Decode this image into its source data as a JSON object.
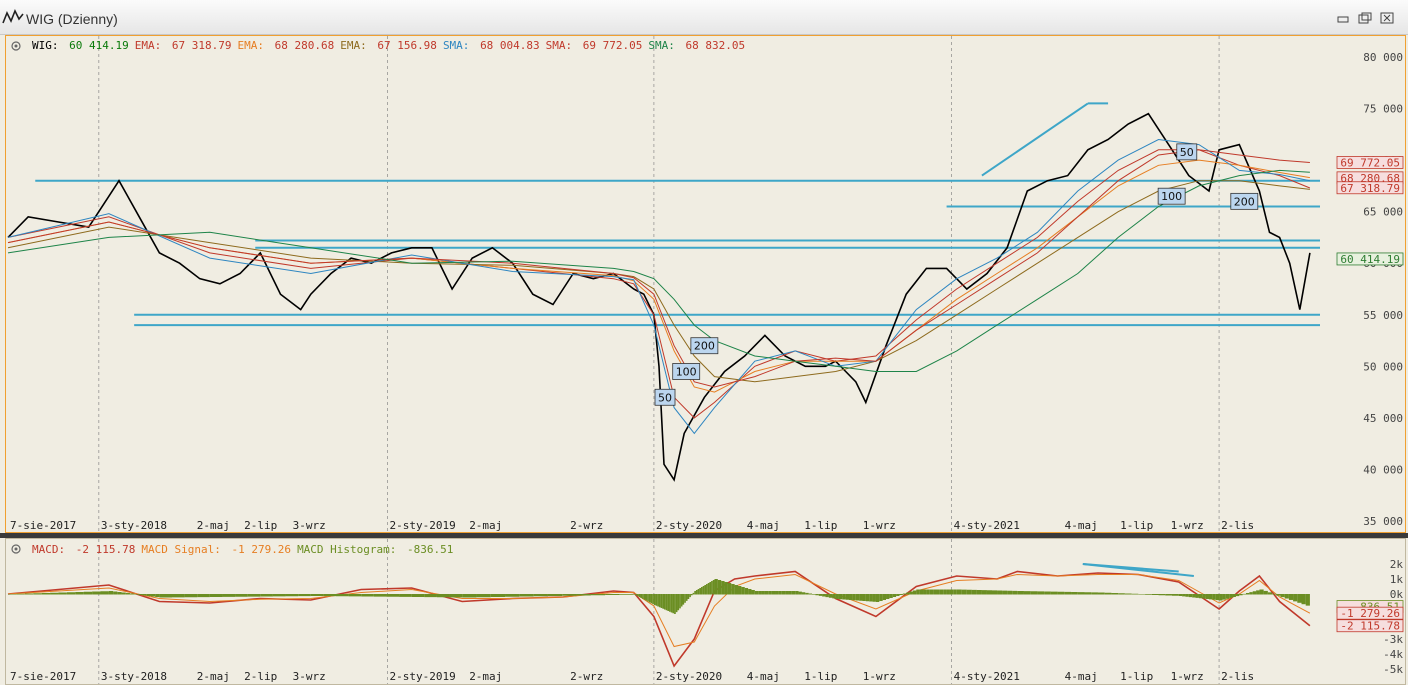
{
  "window": {
    "title": "WIG (Dzienny)",
    "controls": [
      "minimize",
      "restore",
      "close"
    ]
  },
  "main_legend": [
    {
      "label": "WIG:",
      "value": "60 414.19",
      "color": "#000000",
      "valcolor": "#0a7a0a"
    },
    {
      "label": "EMA:",
      "value": "67 318.79",
      "color": "#c0392b",
      "valcolor": "#c0392b"
    },
    {
      "label": "EMA:",
      "value": "68 280.68",
      "color": "#e67e22",
      "valcolor": "#c0392b"
    },
    {
      "label": "EMA:",
      "value": "67 156.98",
      "color": "#8e6b1e",
      "valcolor": "#c0392b"
    },
    {
      "label": "SMA:",
      "value": "68 004.83",
      "color": "#2e86c1",
      "valcolor": "#c0392b"
    },
    {
      "label": "SMA:",
      "value": "69 772.05",
      "color": "#c0392b",
      "valcolor": "#c0392b"
    },
    {
      "label": "SMA:",
      "value": "68 832.05",
      "color": "#1e8449",
      "valcolor": "#c0392b"
    }
  ],
  "sub_legend": [
    {
      "label": "MACD:",
      "value": "-2 115.78",
      "color": "#c0392b"
    },
    {
      "label": "MACD Signal:",
      "value": "-1 279.26",
      "color": "#e67e22"
    },
    {
      "label": "MACD Histogram:",
      "value": "-836.51",
      "color": "#6b8e23"
    }
  ],
  "price_badges": [
    {
      "text": "69 772.05",
      "color": "#c0392b",
      "level": 69772
    },
    {
      "text": "68 280.68",
      "color": "#c0392b",
      "level": 68280
    },
    {
      "text": "67 318.79",
      "color": "#c0392b",
      "level": 67318
    },
    {
      "text": "60 414.19",
      "color": "#2e7d32",
      "level": 60414
    }
  ],
  "macd_badges": [
    {
      "text": "-836.51",
      "color": "#6b8e23",
      "level": -836
    },
    {
      "text": "-1 279.26",
      "color": "#c0392b",
      "level": -1279
    },
    {
      "text": "-2 115.78",
      "color": "#c0392b",
      "level": -2116
    }
  ],
  "chart_data": [
    {
      "type": "line",
      "title": "WIG (Dzienny)",
      "ylim": [
        35000,
        80000
      ],
      "y_ticks": [
        "80 000",
        "75 000",
        "70 000",
        "65 000",
        "60 000",
        "55 000",
        "50 000",
        "45 000",
        "40 000",
        "35 000"
      ],
      "y_tick_values": [
        80000,
        75000,
        70000,
        65000,
        60000,
        55000,
        50000,
        45000,
        40000,
        35000
      ],
      "x_ticks": [
        "7-sie-2017",
        "3-sty-2018",
        "2-maj",
        "2-lip",
        "3-wrz",
        "2-sty-2019",
        "2-maj",
        "2-wrz",
        "2-sty-2020",
        "4-maj",
        "1-lip",
        "1-wrz",
        "4-sty-2021",
        "4-maj",
        "1-lip",
        "1-wrz",
        "2-lis"
      ],
      "x_tick_index": [
        0,
        0.09,
        0.185,
        0.232,
        0.28,
        0.376,
        0.455,
        0.555,
        0.64,
        0.73,
        0.787,
        0.845,
        0.935,
        1.045,
        1.1,
        1.15,
        1.2
      ],
      "series": [
        {
          "name": "WIG",
          "color": "#000000",
          "x": [
            0,
            0.02,
            0.05,
            0.08,
            0.1,
            0.11,
            0.13,
            0.15,
            0.17,
            0.19,
            0.21,
            0.23,
            0.25,
            0.27,
            0.29,
            0.3,
            0.32,
            0.34,
            0.36,
            0.38,
            0.4,
            0.42,
            0.44,
            0.46,
            0.48,
            0.5,
            0.52,
            0.54,
            0.56,
            0.58,
            0.6,
            0.62,
            0.63,
            0.64,
            0.645,
            0.65,
            0.66,
            0.67,
            0.69,
            0.71,
            0.73,
            0.75,
            0.77,
            0.79,
            0.81,
            0.82,
            0.83,
            0.84,
            0.85,
            0.87,
            0.89,
            0.91,
            0.93,
            0.95,
            0.97,
            0.99,
            1.01,
            1.03,
            1.05,
            1.07,
            1.09,
            1.11,
            1.13,
            1.15,
            1.17,
            1.19,
            1.2,
            1.22,
            1.24,
            1.25,
            1.26,
            1.27,
            1.28,
            1.29
          ],
          "values": [
            62500,
            64500,
            64000,
            63500,
            66500,
            68000,
            64500,
            61000,
            60000,
            58500,
            58000,
            59000,
            61000,
            57000,
            55500,
            57000,
            59000,
            60500,
            60000,
            61000,
            61500,
            61500,
            57500,
            60500,
            61500,
            60000,
            57000,
            56000,
            59000,
            58500,
            59000,
            57500,
            57000,
            55000,
            50000,
            40500,
            39000,
            43500,
            47000,
            49500,
            51000,
            53000,
            51000,
            50000,
            50000,
            50500,
            49500,
            48500,
            46500,
            52000,
            57000,
            59500,
            59500,
            57500,
            59000,
            61500,
            67000,
            68000,
            68500,
            71000,
            72000,
            73500,
            74500,
            71500,
            68500,
            67000,
            71000,
            71500,
            67000,
            63000,
            62500,
            60000,
            55500,
            61000
          ]
        },
        {
          "name": "EMA 67 318.79",
          "color": "#c0392b",
          "x": [
            0,
            0.1,
            0.2,
            0.3,
            0.4,
            0.5,
            0.6,
            0.62,
            0.64,
            0.66,
            0.68,
            0.7,
            0.74,
            0.78,
            0.82,
            0.86,
            0.9,
            0.94,
            0.98,
            1.02,
            1.06,
            1.1,
            1.14,
            1.18,
            1.22,
            1.26,
            1.29
          ],
          "values": [
            62500,
            64500,
            61000,
            59500,
            60500,
            59500,
            58500,
            58000,
            55000,
            47000,
            45000,
            46500,
            50000,
            51500,
            50500,
            51000,
            54500,
            57500,
            60000,
            62500,
            66000,
            69000,
            71000,
            71000,
            69500,
            68500,
            67300
          ]
        },
        {
          "name": "EMA 68 280.68",
          "color": "#e67e22",
          "x": [
            0,
            0.1,
            0.2,
            0.3,
            0.4,
            0.5,
            0.6,
            0.62,
            0.64,
            0.66,
            0.68,
            0.7,
            0.74,
            0.78,
            0.82,
            0.86,
            0.9,
            0.94,
            0.98,
            1.02,
            1.06,
            1.1,
            1.14,
            1.18,
            1.22,
            1.26,
            1.29
          ],
          "values": [
            62000,
            64000,
            61500,
            60000,
            60500,
            59500,
            58800,
            58300,
            56500,
            51500,
            48000,
            47500,
            49500,
            50500,
            50500,
            50500,
            53500,
            56500,
            59000,
            61500,
            64500,
            67500,
            69500,
            70000,
            69500,
            68800,
            68300
          ]
        },
        {
          "name": "EMA 67 156.98",
          "color": "#8e6b1e",
          "x": [
            0,
            0.1,
            0.2,
            0.3,
            0.4,
            0.5,
            0.6,
            0.62,
            0.64,
            0.66,
            0.68,
            0.7,
            0.74,
            0.78,
            0.82,
            0.86,
            0.9,
            0.94,
            0.98,
            1.02,
            1.06,
            1.1,
            1.14,
            1.18,
            1.22,
            1.26,
            1.29
          ],
          "values": [
            61500,
            63500,
            62000,
            60500,
            60000,
            59800,
            59000,
            58700,
            57500,
            54000,
            51000,
            49000,
            48500,
            49000,
            49500,
            50500,
            52500,
            55000,
            57500,
            60000,
            62500,
            65000,
            67000,
            68000,
            68000,
            67500,
            67160
          ]
        },
        {
          "name": "SMA 68 004.83",
          "color": "#2e86c1",
          "x": [
            0,
            0.1,
            0.2,
            0.3,
            0.4,
            0.5,
            0.6,
            0.62,
            0.64,
            0.66,
            0.68,
            0.7,
            0.74,
            0.78,
            0.82,
            0.86,
            0.9,
            0.94,
            0.98,
            1.02,
            1.06,
            1.1,
            1.14,
            1.18,
            1.22,
            1.26,
            1.29
          ],
          "values": [
            62500,
            64800,
            60500,
            59000,
            60800,
            59200,
            58700,
            58400,
            54000,
            46000,
            43500,
            46000,
            50500,
            51500,
            50000,
            50500,
            55500,
            58500,
            60500,
            63000,
            67000,
            70000,
            72000,
            71500,
            69000,
            68600,
            68000
          ]
        },
        {
          "name": "SMA 69 772.05",
          "color": "#c0392b",
          "x": [
            0,
            0.1,
            0.2,
            0.3,
            0.4,
            0.5,
            0.6,
            0.62,
            0.64,
            0.66,
            0.68,
            0.7,
            0.74,
            0.78,
            0.82,
            0.86,
            0.9,
            0.94,
            0.98,
            1.02,
            1.06,
            1.1,
            1.14,
            1.18,
            1.22,
            1.26,
            1.29
          ],
          "values": [
            62000,
            64000,
            61500,
            60000,
            60500,
            60000,
            59000,
            58600,
            57000,
            52000,
            48500,
            48000,
            49000,
            50500,
            50800,
            50500,
            53500,
            56000,
            58500,
            61000,
            64500,
            68000,
            70500,
            71000,
            70500,
            70000,
            69770
          ]
        },
        {
          "name": "SMA 68 832.05",
          "color": "#1e8449",
          "x": [
            0,
            0.1,
            0.2,
            0.3,
            0.4,
            0.5,
            0.6,
            0.62,
            0.64,
            0.66,
            0.68,
            0.7,
            0.74,
            0.78,
            0.82,
            0.86,
            0.9,
            0.94,
            0.98,
            1.02,
            1.06,
            1.1,
            1.14,
            1.18,
            1.22,
            1.26,
            1.29
          ],
          "values": [
            61000,
            62500,
            63000,
            61500,
            60000,
            60200,
            59500,
            59200,
            58500,
            56500,
            54000,
            52500,
            51000,
            50500,
            50000,
            49500,
            49500,
            51500,
            54000,
            56500,
            59000,
            62500,
            65500,
            67500,
            68500,
            69000,
            68830
          ]
        }
      ],
      "annotations": [
        {
          "text": "50",
          "x": 0.651,
          "y": 47000
        },
        {
          "text": "100",
          "x": 0.672,
          "y": 49500
        },
        {
          "text": "200",
          "x": 0.69,
          "y": 52000
        },
        {
          "text": "50",
          "x": 1.168,
          "y": 70800
        },
        {
          "text": "100",
          "x": 1.153,
          "y": 66500
        },
        {
          "text": "200",
          "x": 1.225,
          "y": 66000
        }
      ],
      "h_lines": [
        {
          "y": 68000,
          "x0": 0.027,
          "x1": 1.3
        },
        {
          "y": 65500,
          "x0": 0.93,
          "x1": 1.3
        },
        {
          "y": 62200,
          "x0": 0.245,
          "x1": 1.3
        },
        {
          "y": 61500,
          "x0": 0.245,
          "x1": 1.3
        },
        {
          "y": 55000,
          "x0": 0.125,
          "x1": 1.3
        },
        {
          "y": 54000,
          "x0": 0.125,
          "x1": 1.3
        }
      ],
      "trend_lines": [
        {
          "x0": 0.965,
          "y0": 68500,
          "x1": 1.07,
          "y1": 75500
        },
        {
          "x0": 1.07,
          "y0": 75500,
          "x1": 1.09,
          "y1": 75500
        }
      ]
    },
    {
      "type": "line",
      "title": "MACD",
      "ylim": [
        -5000,
        3000
      ],
      "y_ticks": [
        "2k",
        "1k",
        "0k",
        "-1k",
        "-2k",
        "-3k",
        "-4k",
        "-5k"
      ],
      "y_tick_values": [
        2000,
        1000,
        0,
        -1000,
        -2000,
        -3000,
        -4000,
        -5000
      ],
      "series": [
        {
          "name": "MACD",
          "color": "#c0392b",
          "x": [
            0,
            0.05,
            0.1,
            0.15,
            0.2,
            0.25,
            0.3,
            0.35,
            0.4,
            0.45,
            0.5,
            0.55,
            0.6,
            0.62,
            0.64,
            0.66,
            0.68,
            0.7,
            0.72,
            0.74,
            0.78,
            0.82,
            0.86,
            0.9,
            0.94,
            0.98,
            1.0,
            1.04,
            1.08,
            1.12,
            1.16,
            1.2,
            1.22,
            1.24,
            1.26,
            1.29
          ],
          "values": [
            0,
            300,
            600,
            -500,
            -600,
            -300,
            -400,
            300,
            400,
            -500,
            -300,
            -200,
            200,
            100,
            -1500,
            -4800,
            -3000,
            200,
            1000,
            1200,
            1500,
            -300,
            -1500,
            500,
            1200,
            1000,
            1500,
            1200,
            1400,
            1300,
            800,
            -1000,
            200,
            1200,
            -500,
            -2116
          ]
        },
        {
          "name": "MACD Signal",
          "color": "#e67e22",
          "x": [
            0,
            0.05,
            0.1,
            0.15,
            0.2,
            0.25,
            0.3,
            0.35,
            0.4,
            0.45,
            0.5,
            0.55,
            0.6,
            0.62,
            0.64,
            0.66,
            0.68,
            0.7,
            0.72,
            0.74,
            0.78,
            0.82,
            0.86,
            0.9,
            0.94,
            0.98,
            1.0,
            1.04,
            1.08,
            1.12,
            1.16,
            1.2,
            1.22,
            1.24,
            1.26,
            1.29
          ],
          "values": [
            0,
            200,
            400,
            -300,
            -500,
            -350,
            -300,
            100,
            300,
            -300,
            -300,
            -200,
            100,
            100,
            -800,
            -3500,
            -3200,
            -800,
            500,
            1000,
            1300,
            0,
            -1000,
            200,
            900,
            1000,
            1300,
            1200,
            1300,
            1300,
            900,
            -600,
            0,
            900,
            -200,
            -1279
          ]
        },
        {
          "name": "MACD Histogram",
          "color": "#6b8e23",
          "x": [
            0,
            0.1,
            0.15,
            0.3,
            0.45,
            0.62,
            0.64,
            0.66,
            0.68,
            0.7,
            0.74,
            0.78,
            0.82,
            0.86,
            0.9,
            0.94,
            1.0,
            1.08,
            1.16,
            1.2,
            1.24,
            1.29
          ],
          "values": [
            0,
            200,
            -200,
            -100,
            -200,
            0,
            -700,
            -1300,
            200,
            1000,
            200,
            200,
            -300,
            -500,
            300,
            300,
            200,
            100,
            -100,
            -400,
            300,
            -837
          ]
        }
      ],
      "trend_lines": [
        {
          "x0": 1.065,
          "y0": 2000,
          "x1": 1.16,
          "y1": 1500
        },
        {
          "x0": 1.065,
          "y0": 2000,
          "x1": 1.175,
          "y1": 1200
        }
      ]
    }
  ]
}
